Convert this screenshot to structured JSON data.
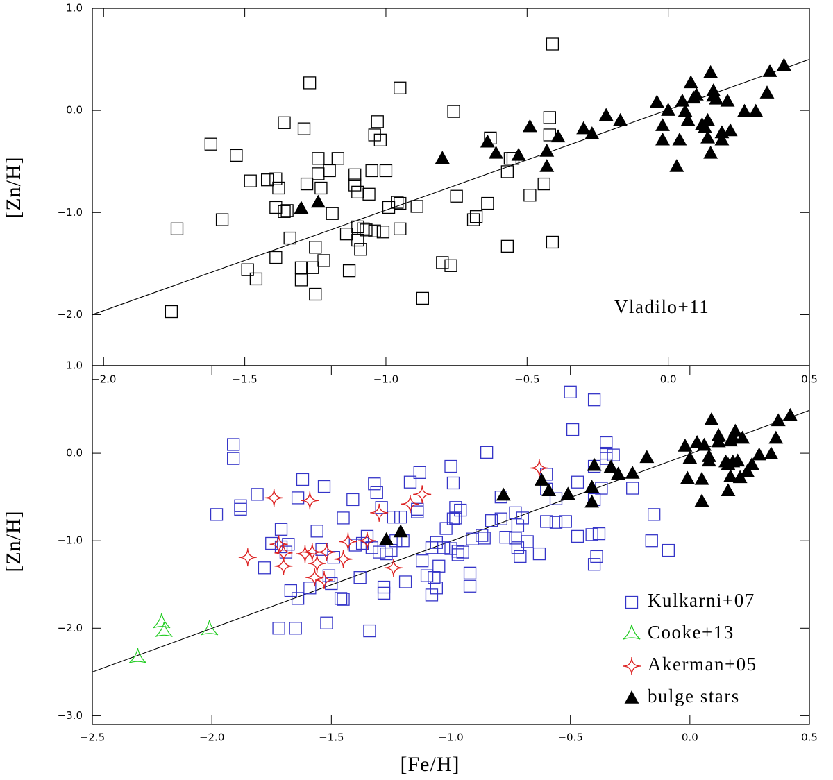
{
  "chart_data": [
    {
      "type": "scatter",
      "ylabel": "[Zn/H]",
      "annotation": "Vladilo+11",
      "xlim": [
        -2.04,
        0.5
      ],
      "ylim": [
        -2.5,
        1.0
      ],
      "xticks": [
        {
          "value": -2.0,
          "label": "−2.0"
        },
        {
          "value": -1.5,
          "label": "−1.5"
        },
        {
          "value": -1.0,
          "label": "−1.0"
        },
        {
          "value": -0.5,
          "label": "−0.5"
        },
        {
          "value": 0.0,
          "label": "0.0"
        },
        0.5
      ],
      "yticks": [
        {
          "value": -2.0,
          "label": "−2.0"
        },
        {
          "value": -1.0,
          "label": "−1.0"
        },
        {
          "value": 0.0,
          "label": "0.0"
        },
        {
          "value": 1.0,
          "label": "1.0"
        }
      ],
      "fit": {
        "x": [
          -2.04,
          0.5
        ],
        "values": [
          -2.0,
          0.5
        ]
      },
      "series": [
        {
          "marker": "square",
          "color": "#000000",
          "x": [
            -1.76,
            -1.74,
            -1.62,
            -1.58,
            -1.53,
            -1.48,
            -1.49,
            -1.46,
            -1.42,
            -1.39,
            -1.39,
            -1.39,
            -1.38,
            -1.36,
            -1.36,
            -1.35,
            -1.34,
            -1.3,
            -1.3,
            -1.29,
            -1.28,
            -1.27,
            -1.26,
            -1.25,
            -1.25,
            -1.24,
            -1.24,
            -1.23,
            -1.22,
            -1.2,
            -1.19,
            -1.17,
            -1.14,
            -1.13,
            -1.11,
            -1.11,
            -1.1,
            -1.1,
            -1.1,
            -1.09,
            -1.08,
            -1.07,
            -1.06,
            -1.05,
            -1.04,
            -1.04,
            -1.03,
            -1.02,
            -1.01,
            -1.0,
            -0.99,
            -0.96,
            -0.95,
            -0.95,
            -0.95,
            -0.89,
            -0.87,
            -0.8,
            -0.77,
            -0.76,
            -0.75,
            -0.69,
            -0.68,
            -0.64,
            -0.63,
            -0.57,
            -0.57,
            -0.56,
            -0.55,
            -0.49,
            -0.44,
            -0.42,
            -0.42,
            -0.41,
            -0.41
          ],
          "values": [
            -1.97,
            -1.16,
            -0.33,
            -1.07,
            -0.44,
            -0.69,
            -1.56,
            -1.65,
            -0.68,
            -0.67,
            -0.95,
            -1.44,
            -0.76,
            -0.12,
            -0.99,
            -0.98,
            -1.25,
            -1.66,
            -1.54,
            -0.18,
            -0.72,
            0.27,
            -1.54,
            -1.34,
            -1.8,
            -0.47,
            -0.62,
            -0.76,
            -1.47,
            -0.59,
            -1.01,
            -0.47,
            -1.21,
            -1.57,
            -0.63,
            -0.73,
            -1.27,
            -1.14,
            -0.8,
            -1.36,
            -1.16,
            -1.17,
            -0.82,
            -0.59,
            -0.24,
            -1.18,
            -0.11,
            -0.29,
            -1.19,
            -0.59,
            -0.95,
            -0.9,
            -0.91,
            0.22,
            -1.16,
            -0.94,
            -1.84,
            -1.49,
            -1.52,
            -0.01,
            -0.84,
            -1.07,
            -1.04,
            -0.91,
            -0.27,
            -1.33,
            -0.6,
            -0.47,
            -0.47,
            -0.83,
            -0.72,
            -0.07,
            -0.24,
            0.65,
            -1.29
          ]
        },
        {
          "marker": "triangle",
          "color": "#000000",
          "x": [
            -1.3,
            -1.24,
            -0.8,
            -0.64,
            -0.61,
            -0.53,
            -0.49,
            -0.43,
            -0.43,
            -0.39,
            -0.3,
            -0.27,
            -0.22,
            -0.17,
            -0.04,
            -0.02,
            -0.02,
            0.0,
            0.03,
            0.04,
            0.05,
            0.06,
            0.07,
            0.08,
            0.09,
            0.1,
            0.12,
            0.13,
            0.14,
            0.14,
            0.15,
            0.16,
            0.16,
            0.17,
            0.19,
            0.19,
            0.21,
            0.22,
            0.27,
            0.31,
            0.35,
            0.36,
            0.41,
            0.15
          ],
          "values": [
            -0.96,
            -0.9,
            -0.47,
            -0.31,
            -0.42,
            -0.44,
            -0.16,
            -0.55,
            -0.4,
            -0.26,
            -0.18,
            -0.23,
            -0.05,
            -0.1,
            0.08,
            -0.15,
            -0.29,
            0.0,
            -0.55,
            -0.29,
            0.09,
            -0.01,
            -0.1,
            0.27,
            0.12,
            0.15,
            -0.14,
            -0.17,
            -0.27,
            -0.1,
            0.37,
            0.14,
            0.19,
            0.11,
            -0.29,
            -0.22,
            0.09,
            -0.2,
            -0.01,
            -0.01,
            0.17,
            0.38,
            0.44,
            -0.42
          ]
        }
      ]
    },
    {
      "type": "scatter",
      "xlabel": "[Fe/H]",
      "ylabel": "[Zn/H]",
      "legend": "lower right",
      "xlim": [
        -2.5,
        0.5
      ],
      "ylim": [
        -3.1,
        1.0
      ],
      "xticks": [
        {
          "value": -2.5,
          "label": "−2.5"
        },
        {
          "value": -2.0,
          "label": "−2.0"
        },
        {
          "value": -1.5,
          "label": "−1.5"
        },
        {
          "value": -1.0,
          "label": "−1.0"
        },
        {
          "value": -0.5,
          "label": "−0.5"
        },
        {
          "value": 0.0,
          "label": "0.0"
        },
        0.5
      ],
      "yticks": [
        {
          "value": -3.0,
          "label": "−3.0"
        },
        {
          "value": -2.0,
          "label": "−2.0"
        },
        {
          "value": -1.0,
          "label": "−1.0"
        },
        {
          "value": 0.0,
          "label": "0.0"
        },
        {
          "value": 1.0,
          "label": "1.0"
        }
      ],
      "fit": {
        "x": [
          -2.5,
          0.5
        ],
        "values": [
          -2.5,
          0.49
        ]
      },
      "series": [
        {
          "name": "Kulkarni+07",
          "marker": "square",
          "color": "#3535c8",
          "x": [
            -1.98,
            -1.91,
            -1.91,
            -1.88,
            -1.88,
            -1.81,
            -1.78,
            -1.75,
            -1.72,
            -1.71,
            -1.71,
            -1.69,
            -1.68,
            -1.67,
            -1.65,
            -1.64,
            -1.64,
            -1.62,
            -1.59,
            -1.56,
            -1.54,
            -1.53,
            -1.52,
            -1.51,
            -1.5,
            -1.49,
            -1.46,
            -1.45,
            -1.45,
            -1.41,
            -1.4,
            -1.38,
            -1.37,
            -1.35,
            -1.34,
            -1.33,
            -1.32,
            -1.31,
            -1.3,
            -1.29,
            -1.28,
            -1.28,
            -1.27,
            -1.25,
            -1.24,
            -1.23,
            -1.21,
            -1.2,
            -1.19,
            -1.17,
            -1.14,
            -1.14,
            -1.13,
            -1.12,
            -1.1,
            -1.08,
            -1.08,
            -1.07,
            -1.06,
            -1.06,
            -1.05,
            -1.03,
            -1.02,
            -1.0,
            -1.0,
            -0.99,
            -0.99,
            -0.98,
            -0.98,
            -0.97,
            -0.97,
            -0.96,
            -0.95,
            -0.92,
            -0.92,
            -0.91,
            -0.87,
            -0.86,
            -0.85,
            -0.83,
            -0.79,
            -0.79,
            -0.77,
            -0.73,
            -0.73,
            -0.72,
            -0.72,
            -0.71,
            -0.7,
            -0.68,
            -0.63,
            -0.6,
            -0.6,
            -0.6,
            -0.56,
            -0.56,
            -0.5,
            -0.49,
            -0.52,
            -0.47,
            -0.47,
            -0.41,
            -0.4,
            -0.4,
            -0.39,
            -0.38,
            -0.4,
            -0.4,
            -0.35,
            -0.35,
            -0.35,
            -0.37,
            -0.32,
            -0.24,
            -0.16,
            -0.15,
            -0.09
          ],
          "values": [
            -0.7,
            0.1,
            -0.06,
            -0.6,
            -0.64,
            -0.47,
            -1.31,
            -1.03,
            -2.0,
            -0.87,
            -1.07,
            -1.13,
            -1.04,
            -1.57,
            -2.0,
            -0.51,
            -1.66,
            -0.3,
            -1.54,
            -0.89,
            -1.1,
            -0.38,
            -1.94,
            -1.4,
            -1.49,
            -1.19,
            -1.66,
            -1.67,
            -0.74,
            -0.53,
            -1.05,
            -1.42,
            -1.03,
            -0.95,
            -2.03,
            -1.08,
            -0.35,
            -0.45,
            -1.13,
            -0.62,
            -1.53,
            -1.6,
            -1.15,
            -1.11,
            -0.73,
            -1.0,
            -0.73,
            -1.0,
            -1.47,
            -0.33,
            -0.64,
            -0.67,
            -0.22,
            -1.23,
            -1.4,
            -1.08,
            -1.62,
            -1.42,
            -1.02,
            -1.54,
            -1.29,
            -1.08,
            -0.86,
            -1.09,
            -0.15,
            -0.34,
            -0.75,
            -0.74,
            -0.62,
            -1.12,
            -1.16,
            -0.65,
            -1.13,
            -1.37,
            -1.52,
            -0.98,
            -0.94,
            -0.97,
            0.01,
            -0.77,
            -0.75,
            -0.5,
            -0.96,
            -0.68,
            -0.97,
            -1.08,
            -0.83,
            -1.18,
            -0.74,
            -1.01,
            -1.15,
            -0.24,
            -0.41,
            -0.78,
            -0.52,
            -0.79,
            0.7,
            0.27,
            -0.78,
            -0.33,
            -0.95,
            -0.93,
            -0.53,
            -0.15,
            -1.18,
            -0.92,
            -1.27,
            0.61,
            0.0,
            0.12,
            -0.06,
            -0.4,
            -0.02,
            -0.4,
            -1.0,
            -0.7,
            -1.11
          ]
        },
        {
          "name": "Cooke+13",
          "marker": "tri3",
          "color": "#22cc22",
          "x": [
            -2.31,
            -2.21,
            -2.2,
            -2.01
          ],
          "values": [
            -2.34,
            -1.94,
            -2.04,
            -2.02
          ]
        },
        {
          "name": "Akerman+05",
          "marker": "star4",
          "color": "#dd2222",
          "x": [
            -1.85,
            -1.74,
            -1.72,
            -1.7,
            -1.7,
            -1.61,
            -1.59,
            -1.58,
            -1.57,
            -1.56,
            -1.53,
            -1.52,
            -1.45,
            -1.43,
            -1.35,
            -1.3,
            -1.24,
            -1.17,
            -1.12,
            -0.63
          ],
          "values": [
            -1.19,
            -0.51,
            -1.04,
            -1.14,
            -1.29,
            -1.15,
            -0.54,
            -1.13,
            -1.42,
            -1.26,
            -1.45,
            -1.13,
            -1.21,
            -1.01,
            -1.0,
            -0.68,
            -1.31,
            -0.58,
            -0.47,
            -0.17
          ]
        },
        {
          "name": "bulge stars",
          "marker": "triangle",
          "color": "#000000",
          "x": [
            -1.27,
            -1.21,
            -0.78,
            -0.62,
            -0.59,
            -0.51,
            -0.4,
            -0.41,
            -0.41,
            -0.33,
            -0.3,
            -0.24,
            -0.18,
            -0.02,
            -0.01,
            0.0,
            0.03,
            0.05,
            0.05,
            0.06,
            0.08,
            0.08,
            0.09,
            0.12,
            0.12,
            0.15,
            0.16,
            0.17,
            0.17,
            0.18,
            0.19,
            0.18,
            0.2,
            0.21,
            0.22,
            0.24,
            0.26,
            0.29,
            0.34,
            0.36,
            0.37,
            0.42,
            0.16
          ],
          "values": [
            -0.99,
            -0.9,
            -0.48,
            -0.31,
            -0.43,
            -0.47,
            -0.14,
            -0.56,
            -0.39,
            -0.16,
            -0.24,
            -0.23,
            -0.05,
            0.08,
            -0.29,
            -0.06,
            0.12,
            -0.55,
            -0.3,
            0.09,
            -0.04,
            -0.09,
            0.38,
            0.2,
            0.13,
            -0.1,
            -0.13,
            -0.27,
            0.14,
            -0.1,
            0.25,
            0.18,
            -0.09,
            -0.28,
            0.17,
            -0.21,
            -0.13,
            -0.02,
            -0.01,
            0.17,
            0.37,
            0.43,
            -0.43
          ]
        }
      ]
    }
  ]
}
